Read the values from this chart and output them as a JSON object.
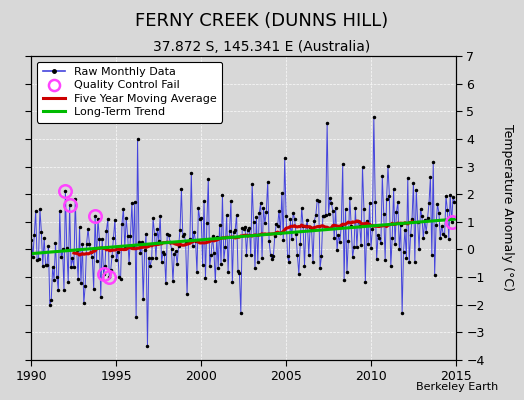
{
  "title": "FERNY CREEK (DUNNS HILL)",
  "subtitle": "37.872 S, 145.341 E (Australia)",
  "ylabel": "Temperature Anomaly (°C)",
  "watermark": "Berkeley Earth",
  "xlim": [
    1990,
    2015
  ],
  "ylim": [
    -4,
    7
  ],
  "yticks": [
    -4,
    -3,
    -2,
    -1,
    0,
    1,
    2,
    3,
    4,
    5,
    6,
    7
  ],
  "xticks": [
    1990,
    1995,
    2000,
    2005,
    2010,
    2015
  ],
  "bg_color": "#d8d8d8",
  "plot_bg": "#d8d8d8",
  "raw_color": "#4444dd",
  "ma_color": "#cc0000",
  "trend_color": "#00bb00",
  "qc_color": "#ff44ff",
  "legend_labels": [
    "Raw Monthly Data",
    "Quality Control Fail",
    "Five Year Moving Average",
    "Long-Term Trend"
  ],
  "title_fontsize": 13,
  "subtitle_fontsize": 10
}
